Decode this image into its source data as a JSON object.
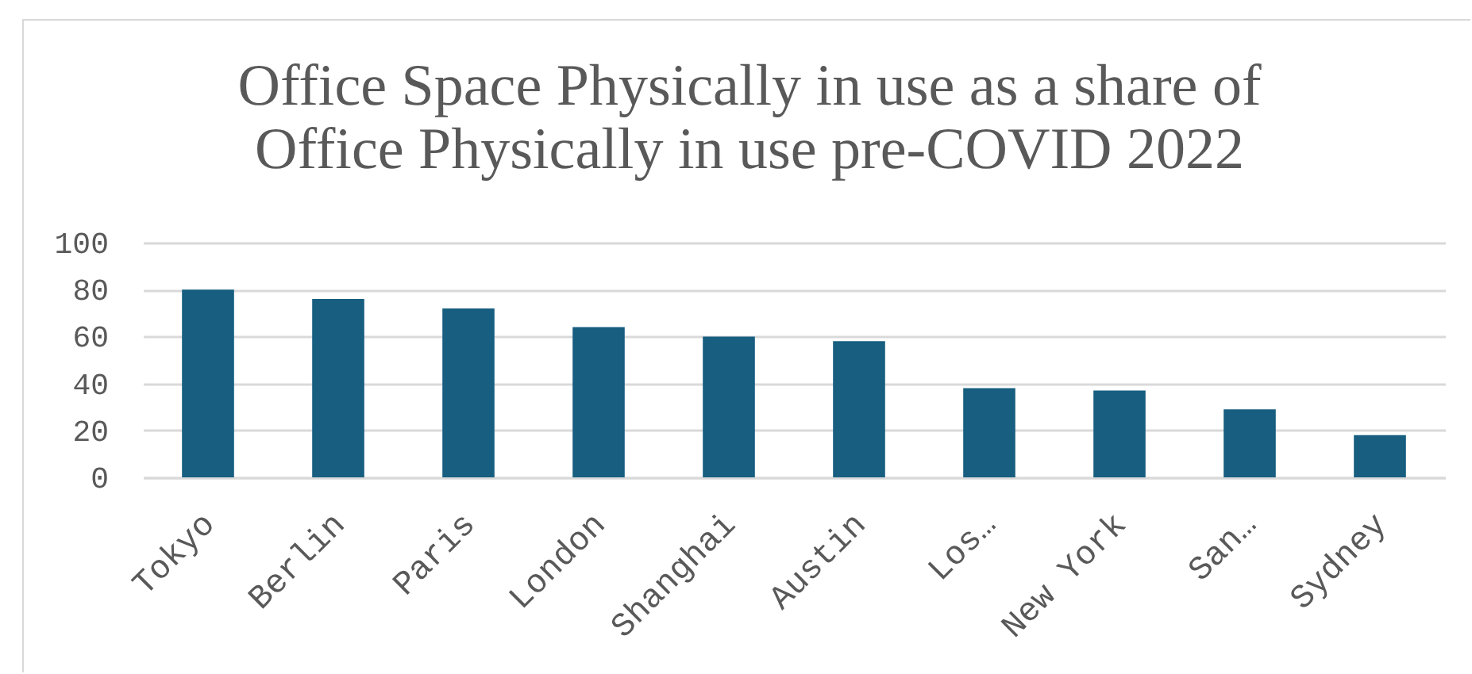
{
  "chart_data": {
    "type": "bar",
    "title": "Office Space Physically in use as a share of Office Physically in use pre-COVID 2022",
    "categories": [
      "Tokyo",
      "Berlin",
      "Paris",
      "London",
      "Shanghai",
      "Austin",
      "Los…",
      "New York",
      "San…",
      "Sydney"
    ],
    "values": [
      80,
      76,
      72,
      64,
      60,
      58,
      38,
      37,
      29,
      18
    ],
    "color": "#175e80",
    "ylim": [
      0,
      100
    ],
    "yticks": [
      0,
      20,
      40,
      60,
      80,
      100
    ],
    "grid": "y"
  }
}
